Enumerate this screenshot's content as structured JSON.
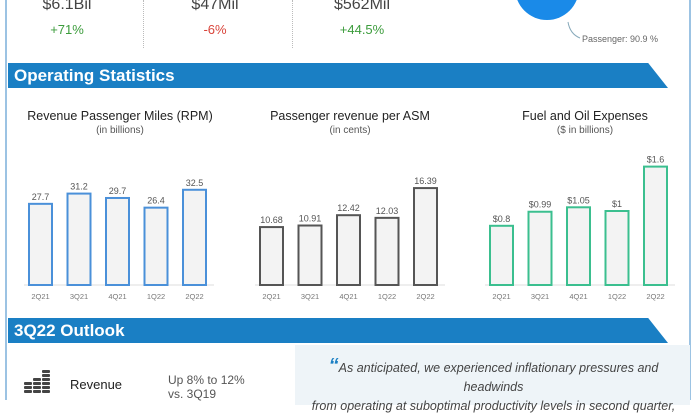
{
  "kpis": [
    {
      "value": "$6.1Bil",
      "change": "+71%",
      "color": "#3c9c3c"
    },
    {
      "value": "$47Mil",
      "change": "-6%",
      "color": "#d9443a"
    },
    {
      "value": "$562Mil",
      "change": "+44.5%",
      "color": "#3c9c3c"
    }
  ],
  "pie": {
    "label": "Passenger: 90.9 %",
    "color": "#1a8ae8"
  },
  "sections": {
    "operating": "Operating Statistics",
    "outlook": "3Q22 Outlook"
  },
  "chart_data": [
    {
      "type": "bar",
      "title": "Revenue Passenger Miles (RPM)",
      "subtitle": "(in billions)",
      "categories": [
        "2Q21",
        "3Q21",
        "4Q21",
        "1Q22",
        "2Q22"
      ],
      "values": [
        27.7,
        31.2,
        29.7,
        26.4,
        32.5
      ],
      "labels": [
        "27.7",
        "31.2",
        "29.7",
        "26.4",
        "32.5"
      ],
      "color": "#4a90d9"
    },
    {
      "type": "bar",
      "title": "Passenger revenue per ASM",
      "subtitle": "(in cents)",
      "categories": [
        "2Q21",
        "3Q21",
        "4Q21",
        "1Q22",
        "2Q22"
      ],
      "values": [
        10.68,
        10.91,
        12.42,
        12.03,
        16.39
      ],
      "labels": [
        "10.68",
        "10.91",
        "12.42",
        "12.03",
        "16.39"
      ],
      "color": "#555555"
    },
    {
      "type": "bar",
      "title": "Fuel and Oil Expenses",
      "subtitle": "($ in billions)",
      "categories": [
        "2Q21",
        "3Q21",
        "4Q21",
        "1Q22",
        "2Q22"
      ],
      "values": [
        0.8,
        0.99,
        1.05,
        1,
        1.6
      ],
      "labels": [
        "$0.8",
        "$0.99",
        "$1.05",
        "$1",
        "$1.6"
      ],
      "color": "#3bbf8f"
    }
  ],
  "outlook": {
    "metric": "Revenue",
    "line1": "Up 8% to 12%",
    "line2": "vs. 3Q19",
    "icon": "coins-icon"
  },
  "quote": {
    "line1": "As anticipated, we experienced inflationary pressures and headwinds",
    "line2": "from operating at suboptimal productivity levels in second quarter,"
  }
}
